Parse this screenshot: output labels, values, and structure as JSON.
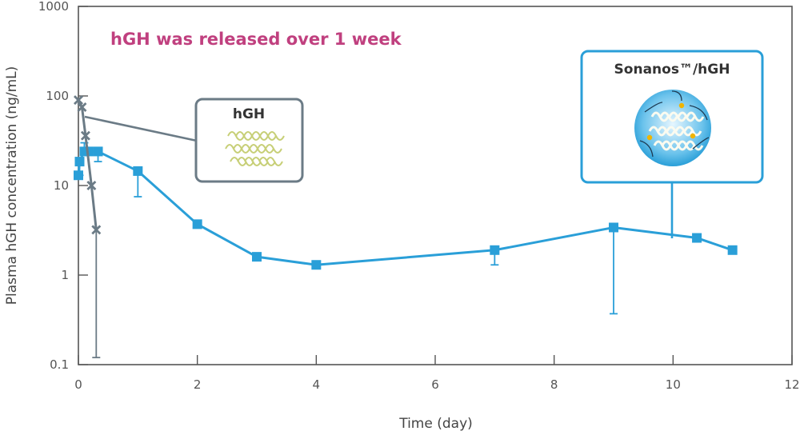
{
  "chart_data": {
    "type": "line",
    "headline": "hGH was released over 1 week",
    "xlabel": "Time (day)",
    "ylabel": "Plasma hGH concentration (ng/mL)",
    "xlim": [
      0,
      12
    ],
    "ylim": [
      0.1,
      1000
    ],
    "yscale": "log",
    "x_ticks": [
      "0",
      "2",
      "4",
      "6",
      "8",
      "10",
      "12"
    ],
    "y_ticks": [
      "0.1",
      "1",
      "10",
      "100",
      "1000"
    ],
    "grid": false,
    "series": [
      {
        "name": "Sonanos™/hGH",
        "color": "#2a9fd8",
        "marker": "square",
        "points": [
          {
            "x": 0.0,
            "y": 13,
            "err_low": null,
            "err_high": null
          },
          {
            "x": 0.02,
            "y": 18.5,
            "err_low": 13,
            "err_high": null
          },
          {
            "x": 0.1,
            "y": 24,
            "err_low": null,
            "err_high": 30
          },
          {
            "x": 0.17,
            "y": 24,
            "err_low": null,
            "err_high": null
          },
          {
            "x": 0.33,
            "y": 24,
            "err_low": 18.5,
            "err_high": null
          },
          {
            "x": 1.0,
            "y": 14.5,
            "err_low": 7.5,
            "err_high": null
          },
          {
            "x": 2.0,
            "y": 3.7,
            "err_low": null,
            "err_high": null
          },
          {
            "x": 3.0,
            "y": 1.6,
            "err_low": null,
            "err_high": null
          },
          {
            "x": 4.0,
            "y": 1.3,
            "err_low": null,
            "err_high": null
          },
          {
            "x": 7.0,
            "y": 1.9,
            "err_low": 1.3,
            "err_high": null
          },
          {
            "x": 9.0,
            "y": 3.4,
            "err_low": 0.37,
            "err_high": null
          },
          {
            "x": 10.4,
            "y": 2.6,
            "err_low": null,
            "err_high": null
          },
          {
            "x": 11.0,
            "y": 1.9,
            "err_low": null,
            "err_high": null
          }
        ]
      },
      {
        "name": "hGH",
        "color": "#6b7b86",
        "marker": "x",
        "points": [
          {
            "x": 0.0,
            "y": 90,
            "err_low": null,
            "err_high": null
          },
          {
            "x": 0.06,
            "y": 75,
            "err_low": null,
            "err_high": null
          },
          {
            "x": 0.12,
            "y": 36,
            "err_low": null,
            "err_high": null
          },
          {
            "x": 0.22,
            "y": 10,
            "err_low": null,
            "err_high": null
          },
          {
            "x": 0.3,
            "y": 3.2,
            "err_low": 0.12,
            "err_high": null
          }
        ]
      }
    ],
    "callouts": [
      {
        "label": "hGH",
        "series": "hGH",
        "color": "#6b7b86"
      },
      {
        "label": "Sonanos™/hGH",
        "series": "Sonanos™/hGH",
        "color": "#2a9fd8"
      }
    ]
  }
}
